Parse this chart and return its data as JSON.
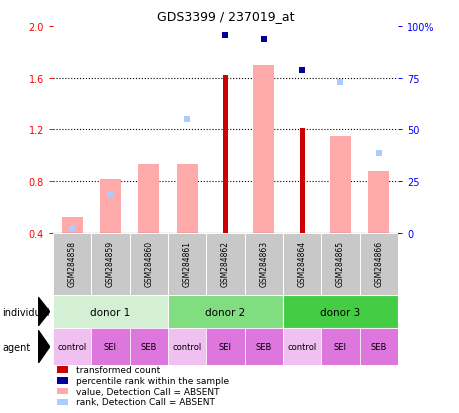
{
  "title": "GDS3399 / 237019_at",
  "samples": [
    "GSM284858",
    "GSM284859",
    "GSM284860",
    "GSM284861",
    "GSM284862",
    "GSM284863",
    "GSM284864",
    "GSM284865",
    "GSM284866"
  ],
  "donors": [
    {
      "label": "donor 1",
      "cols": [
        0,
        1,
        2
      ],
      "color": "#d4f0d4"
    },
    {
      "label": "donor 2",
      "cols": [
        3,
        4,
        5
      ],
      "color": "#80dd80"
    },
    {
      "label": "donor 3",
      "cols": [
        6,
        7,
        8
      ],
      "color": "#44cc44"
    }
  ],
  "agents": [
    "control",
    "SEI",
    "SEB",
    "control",
    "SEI",
    "SEB",
    "control",
    "SEI",
    "SEB"
  ],
  "agent_colors": [
    "#f0c0f0",
    "#dd77dd",
    "#dd77dd",
    "#f0c0f0",
    "#dd77dd",
    "#dd77dd",
    "#f0c0f0",
    "#dd77dd",
    "#dd77dd"
  ],
  "gsm_bg": "#c8c8c8",
  "red_bars": [
    null,
    null,
    null,
    null,
    1.62,
    null,
    1.21,
    null,
    null
  ],
  "pink_bars": [
    0.52,
    0.82,
    0.93,
    0.93,
    null,
    1.7,
    null,
    1.15,
    0.88
  ],
  "blue_squares": [
    null,
    null,
    null,
    null,
    1.93,
    1.9,
    1.66,
    null,
    null
  ],
  "lightblue_squares": [
    0.44,
    0.7,
    null,
    1.28,
    null,
    1.9,
    null,
    1.57,
    1.02
  ],
  "ylim": [
    0.4,
    2.0
  ],
  "yticks_left": [
    0.4,
    0.8,
    1.2,
    1.6,
    2.0
  ],
  "yright_labels": [
    "0",
    "25",
    "50",
    "75",
    "100%"
  ],
  "dotted_lines": [
    0.8,
    1.2,
    1.6
  ],
  "legend_items": [
    {
      "color": "#cc0000",
      "label": "transformed count"
    },
    {
      "color": "#000099",
      "label": "percentile rank within the sample"
    },
    {
      "color": "#ffaaaa",
      "label": "value, Detection Call = ABSENT"
    },
    {
      "color": "#aaccff",
      "label": "rank, Detection Call = ABSENT"
    }
  ]
}
